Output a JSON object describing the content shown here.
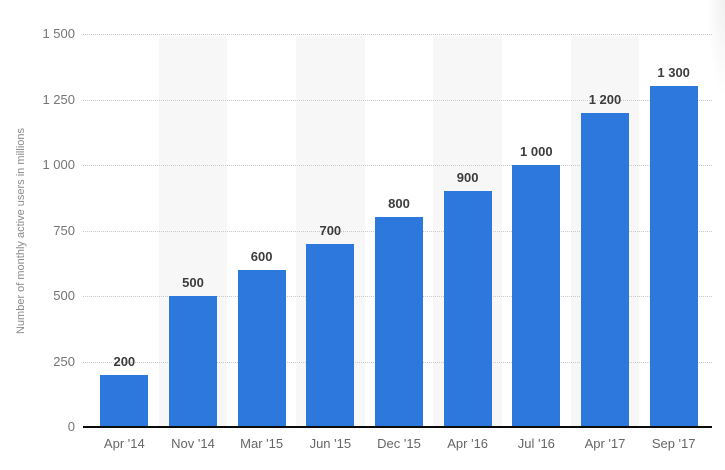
{
  "chart_data": {
    "type": "bar",
    "title": "",
    "categories": [
      "Apr '14",
      "Nov '14",
      "Mar '15",
      "Jun '15",
      "Dec '15",
      "Apr '16",
      "Jul '16",
      "Apr '17",
      "Sep '17"
    ],
    "values": [
      200,
      500,
      600,
      700,
      800,
      900,
      1000,
      1200,
      1300
    ],
    "value_labels": [
      "200",
      "500",
      "600",
      "700",
      "800",
      "900",
      "1 000",
      "1 200",
      "1 300"
    ],
    "xlabel": "",
    "ylabel": "Number of monthly active users in millions",
    "ylim": [
      0,
      1500
    ],
    "yticks": [
      0,
      250,
      500,
      750,
      1000,
      1250,
      1500
    ],
    "ytick_labels": [
      "0",
      "250",
      "500",
      "750",
      "1 000",
      "1 250",
      "1 500"
    ],
    "grid": "horizontal-dotted",
    "legend": "none",
    "alternating_column_bands": true,
    "colors": {
      "bar": "#2c78dc",
      "column_band": "#f7f7f7",
      "gridline": "#c9c9c9",
      "axis_line": "#0a0a0a",
      "value_label": "#3c3c3c",
      "x_tick_label": "#666666",
      "y_tick_label": "#757575",
      "y_axis_title": "#8a8a8a",
      "background": "#ffffff"
    }
  }
}
